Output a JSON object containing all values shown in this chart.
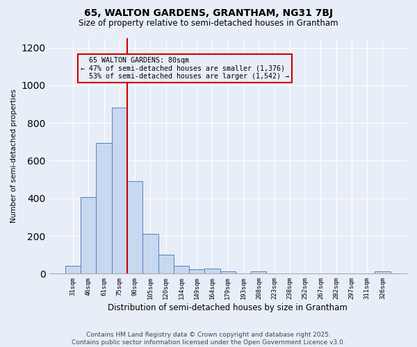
{
  "title1": "65, WALTON GARDENS, GRANTHAM, NG31 7BJ",
  "title2": "Size of property relative to semi-detached houses in Grantham",
  "xlabel": "Distribution of semi-detached houses by size in Grantham",
  "ylabel": "Number of semi-detached properties",
  "footnote1": "Contains HM Land Registry data © Crown copyright and database right 2025.",
  "footnote2": "Contains public sector information licensed under the Open Government Licence v3.0.",
  "categories": [
    "31sqm",
    "46sqm",
    "61sqm",
    "75sqm",
    "90sqm",
    "105sqm",
    "120sqm",
    "134sqm",
    "149sqm",
    "164sqm",
    "179sqm",
    "193sqm",
    "208sqm",
    "223sqm",
    "238sqm",
    "252sqm",
    "267sqm",
    "282sqm",
    "297sqm",
    "311sqm",
    "326sqm"
  ],
  "values": [
    40,
    405,
    695,
    880,
    490,
    213,
    100,
    40,
    25,
    28,
    12,
    0,
    12,
    0,
    0,
    0,
    0,
    0,
    0,
    0,
    12
  ],
  "bar_color": "#c8d8ee",
  "bar_edge_color": "#5080c0",
  "vline_color": "#cc0000",
  "vline_x": 3.5,
  "ylim_max": 1250,
  "annotation_label": "65 WALTON GARDENS: 80sqm",
  "pct_smaller": 47,
  "count_smaller": 1376,
  "pct_larger": 53,
  "count_larger": 1542,
  "background_color": "#e8eef8",
  "grid_color": "#ffffff",
  "ann_box_edge_color": "#cc0000",
  "title1_fontsize": 10,
  "title2_fontsize": 8.5,
  "footnote_fontsize": 6.5
}
